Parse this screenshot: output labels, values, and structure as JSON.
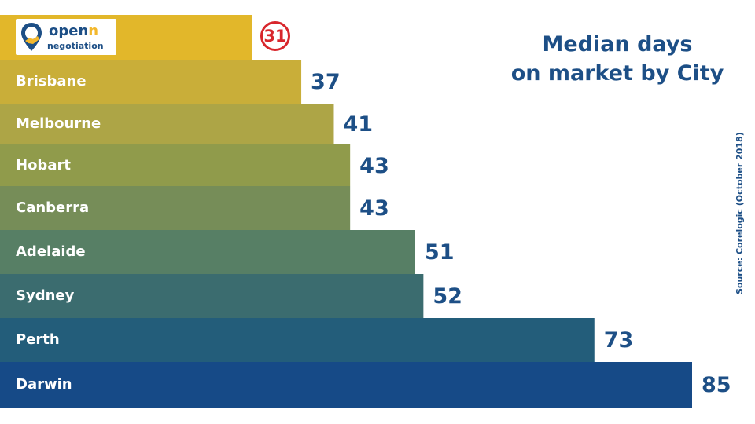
{
  "header": {
    "title_line1": "Median days",
    "title_line2": "on market by City",
    "source": "Source: Corelogic (October 2018)"
  },
  "logo": {
    "word_a": "open",
    "word_b": "n",
    "sub": "negotiation",
    "icon": "map-pin-handshake-icon",
    "colors": {
      "primary": "#1d4f86",
      "accent": "#f3b82d"
    }
  },
  "chart_data": {
    "type": "bar",
    "orientation": "horizontal",
    "title": "Median days on market by City",
    "categories": [
      "",
      "Brisbane",
      "Melbourne",
      "Hobart",
      "Canberra",
      "Adelaide",
      "Sydney",
      "Perth",
      "Darwin"
    ],
    "values": [
      31,
      37,
      41,
      43,
      43,
      51,
      52,
      73,
      85
    ],
    "value_labels": [
      "31",
      "37",
      "41",
      "43",
      "43",
      "51",
      "52",
      "73",
      "85"
    ],
    "highlighted_index": 0,
    "colors": [
      "#e2b72a",
      "#c9ae39",
      "#ada546",
      "#909b4b",
      "#768d58",
      "#577f65",
      "#3b6c6f",
      "#235d7a",
      "#164a87"
    ],
    "grid": false,
    "legend": "none",
    "xlim": [
      0,
      85
    ]
  }
}
